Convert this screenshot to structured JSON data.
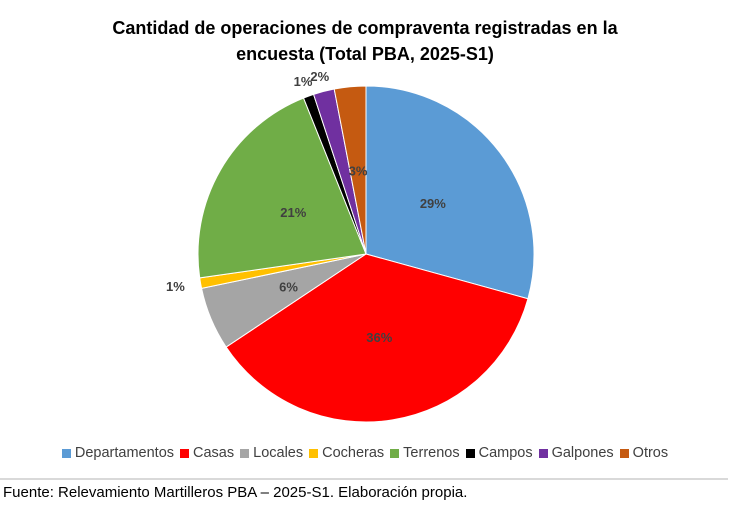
{
  "chart_data": {
    "type": "pie",
    "title_lines": [
      "Cantidad de operaciones de compraventa registradas en la",
      "encuesta (Total PBA, 2025-S1)"
    ],
    "categories": [
      "Departamentos",
      "Casas",
      "Locales",
      "Cocheras",
      "Terrenos",
      "Campos",
      "Galpones",
      "Otros"
    ],
    "values": [
      29,
      36,
      6,
      1,
      21,
      1,
      2,
      3
    ],
    "labels": [
      "29%",
      "36%",
      "6%",
      "1%",
      "21%",
      "1%",
      "2%",
      "3%"
    ],
    "colors": [
      "#5b9bd5",
      "#ff0000",
      "#a5a5a5",
      "#ffc000",
      "#70ad47",
      "#000000",
      "#7030a0",
      "#c55a11"
    ],
    "legend_position": "bottom"
  },
  "source": "Fuente: Relevamiento Martilleros PBA – 2025-S1. Elaboración propia."
}
